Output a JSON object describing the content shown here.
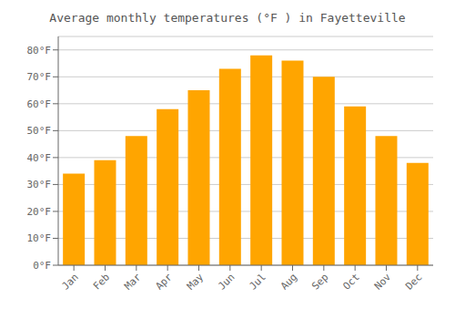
{
  "chart_data": {
    "type": "bar",
    "title": "Average monthly temperatures (°F ) in Fayetteville",
    "categories": [
      "Jan",
      "Feb",
      "Mar",
      "Apr",
      "May",
      "Jun",
      "Jul",
      "Aug",
      "Sep",
      "Oct",
      "Nov",
      "Dec"
    ],
    "values": [
      34,
      39,
      48,
      58,
      65,
      73,
      78,
      76,
      70,
      59,
      48,
      38
    ],
    "color": "#FFA500",
    "ylim": [
      0,
      85
    ],
    "yticks": [
      {
        "value": 0,
        "label": "0°F"
      },
      {
        "value": 10,
        "label": "10°F"
      },
      {
        "value": 20,
        "label": "20°F"
      },
      {
        "value": 30,
        "label": "30°F"
      },
      {
        "value": 40,
        "label": "40°F"
      },
      {
        "value": 50,
        "label": "50°F"
      },
      {
        "value": 60,
        "label": "60°F"
      },
      {
        "value": 70,
        "label": "70°F"
      },
      {
        "value": 80,
        "label": "80°F"
      }
    ],
    "grid": true
  }
}
